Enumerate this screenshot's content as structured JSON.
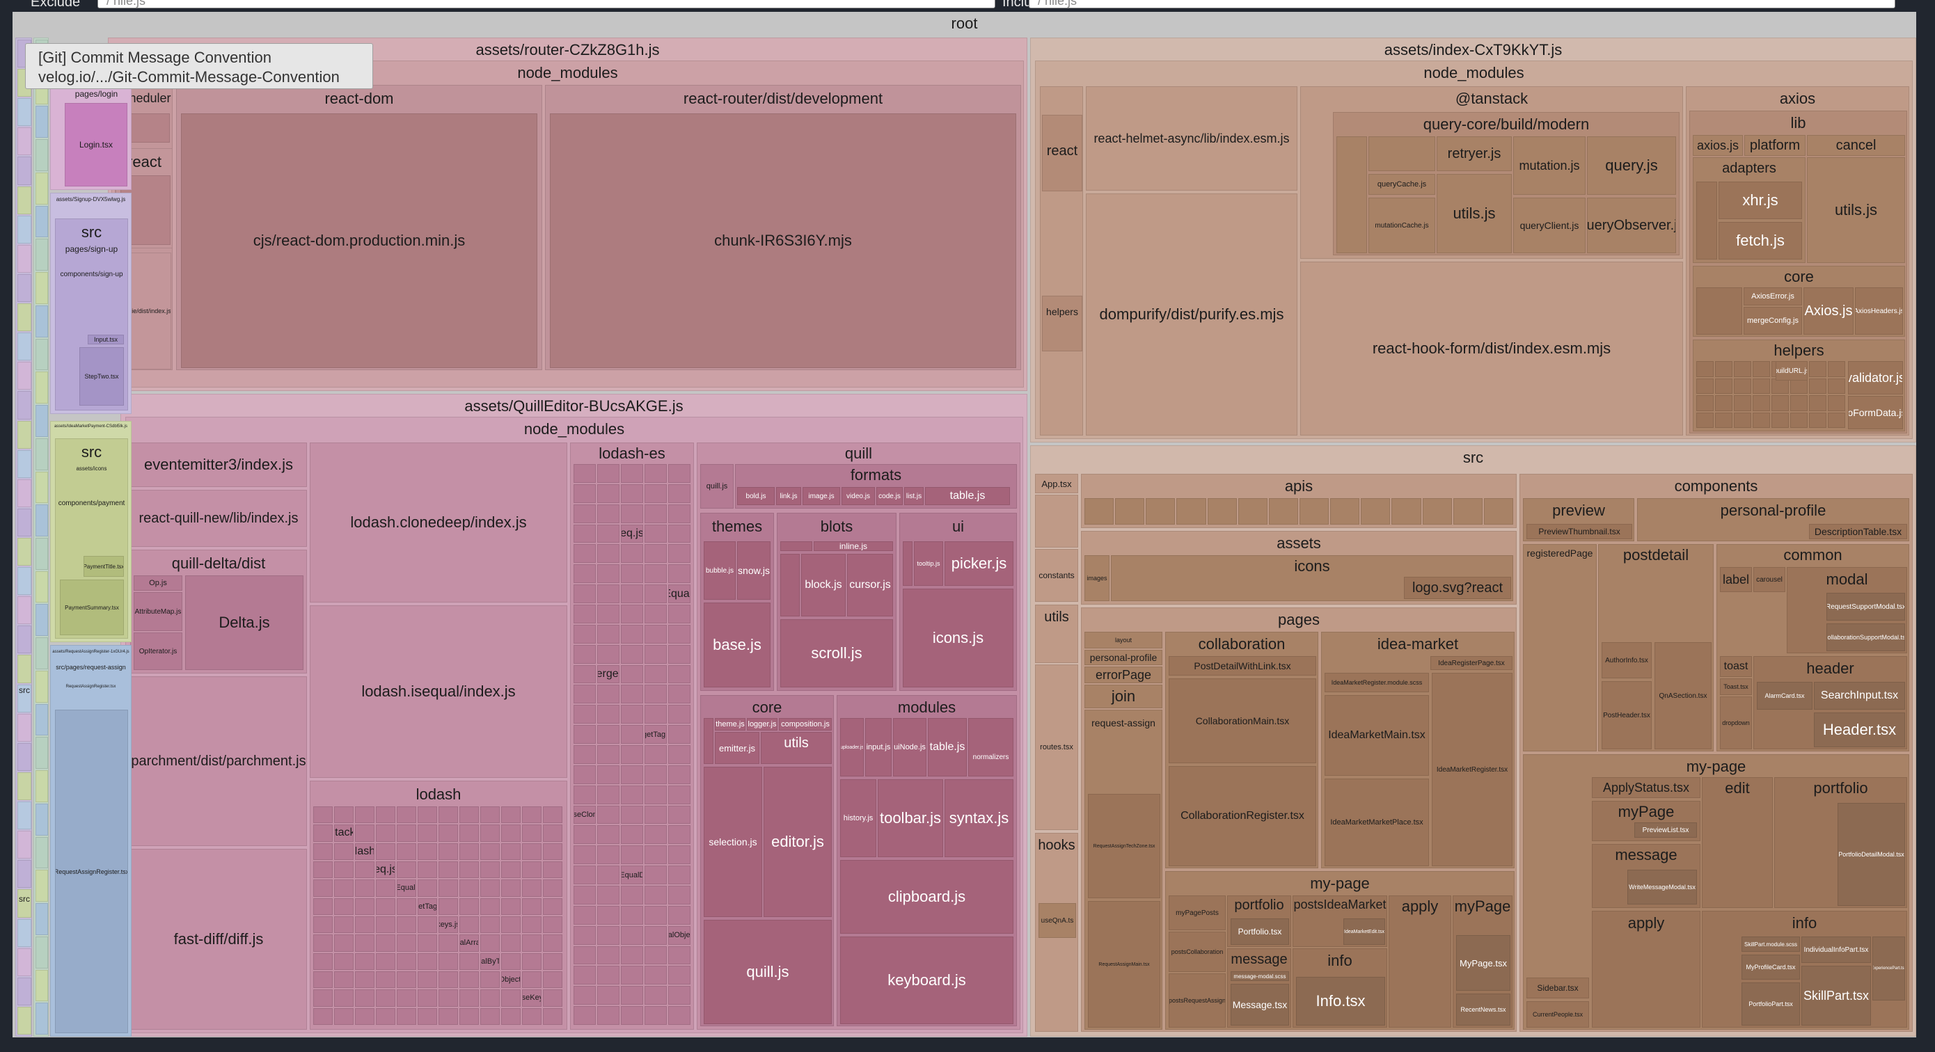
{
  "filters": {
    "exclude_label": "Exclude",
    "exclude_placeholder": "/ hile.js",
    "include_label": "Include",
    "include_placeholder": "/ hile.js"
  },
  "tooltip": {
    "line1": "[Git] Commit Message Convention",
    "line2": "velog.io/.../Git-Commit-Message-Convention"
  },
  "colors": {
    "router": "#d4adb4",
    "router_dark": "#ad7c7f",
    "quill": "#d6afc0",
    "quill_mid": "#c490a6",
    "quill_dark": "#a5637a",
    "index": "#d1b9ad",
    "index_dark": "#a88266",
    "src": "#d1b8ab",
    "green": "#c8d4a4",
    "blue": "#9fb4cf",
    "lavender": "#c5bad9",
    "pink": "#d49ccc"
  },
  "treemap": {
    "root": "root",
    "router": {
      "title": "assets/router-CZkZ8G1h.js",
      "node_modules": "node_modules",
      "scheduler": "scheduler",
      "react": "react",
      "cookie": "cookie/dist/index.js",
      "react_dom": "react-dom",
      "react_dom_min": "cjs/react-dom.production.min.js",
      "react_router": "react-router/dist/development",
      "chunk": "chunk-IR6S3I6Y.mjs"
    },
    "quill_editor": {
      "title": "assets/QuillEditor-BUcsAKGE.js",
      "node_modules": "node_modules",
      "eventemitter": "eventemitter3/index.js",
      "react_quill": "react-quill-new/lib/index.js",
      "quill_delta": "quill-delta/dist",
      "op": "Op.js",
      "attribute_map": "AttributeMap.js",
      "op_iterator": "OpIterator.js",
      "delta": "Delta.js",
      "parchment": "parchment/dist/parchment.js",
      "fast_diff": "fast-diff/diff.js",
      "clonedeep": "lodash.clonedeep/index.js",
      "isequal": "lodash.isequal/index.js",
      "lodash": "lodash",
      "lodash_files": [
        "_Stack.js",
        "_Hash.js",
        "eq.js",
        "isEqual.js",
        "_getTag.js",
        "keys.js",
        "_equalArrays.js",
        "_equalByTag.js",
        "isObject.js",
        "_baseKeys.js"
      ],
      "lodash_es": "lodash-es",
      "lodash_es_files": [
        "eq.js",
        "isEqual.js",
        "merge.js",
        "_getTag.js",
        "_baseClone.js",
        "_baseEqualDeep.js",
        "_equalObjects.js"
      ],
      "quill": "quill",
      "quill_js_small": "quill.js",
      "formats": "formats",
      "format_files": [
        "bold.js",
        "link.js",
        "image.js",
        "video.js",
        "code.js",
        "list.js",
        "table.js"
      ],
      "themes": "themes",
      "bubble": "bubble.js",
      "snow": "snow.js",
      "base": "base.js",
      "blots": "blots",
      "inline": "inline.js",
      "block": "block.js",
      "cursor": "cursor.js",
      "scroll": "scroll.js",
      "ui": "ui",
      "tooltip": "tooltip.js",
      "picker": "picker.js",
      "icons": "icons.js",
      "core": "core",
      "theme": "theme.js",
      "logger": "logger.js",
      "composition": "composition.js",
      "emitter": "emitter.js",
      "utils": "utils",
      "selection": "selection.js",
      "editor": "editor.js",
      "quill_js": "quill.js",
      "modules": "modules",
      "uploader": "uploader.js",
      "input": "input.js",
      "ui_node": "uiNode.js",
      "table_mod": "table.js",
      "normalizers": "normalizers",
      "history": "history.js",
      "toolbar": "toolbar.js",
      "syntax": "syntax.js",
      "clipboard": "clipboard.js",
      "keyboard": "keyboard.js"
    },
    "left_columns": {
      "pages_login": "pages/login",
      "login_tsx": "Login.tsx",
      "signup_asset": "assets/Signup-DVX5wlwg.js",
      "src": "src",
      "pages_signup": "pages/sign-up",
      "components_signup": "components/sign-up",
      "input_tsx": "Input.tsx",
      "steptwo": "StepTwo.tsx",
      "payment_asset": "assets/IdeaMarketPayment-CSdbl5Ik.js",
      "src2": "src",
      "assets_icons": "assets/icons",
      "components_payment": "components/payment",
      "payment_title": "PaymentTitle.tsx",
      "payment_summary": "PaymentSummary.tsx",
      "request_asset": "assets/RequestAssignRegister-1xGUr4.js",
      "src_pages_request": "src/pages/request-assign",
      "request_assign_register": "RequestAssignRegister.tsx",
      "request_register_tsx": "RequestAssignRegister.tsx",
      "src_narrow1": "src",
      "src_narrow2": "src"
    },
    "index_bundle": {
      "title": "assets/index-CxT9KkYT.js",
      "node_modules": "node_modules",
      "react": "react",
      "helpers": "helpers",
      "react_helmet": "react-helmet-async/lib/index.esm.js",
      "dompurify": "dompurify/dist/purify.es.mjs",
      "tanstack": "@tanstack",
      "query_core": "query-core/build/modern",
      "retryer": "retryer.js",
      "mutation": "mutation.js",
      "query": "query.js",
      "query_cache": "queryCache.js",
      "utils": "utils.js",
      "query_client": "queryClient.js",
      "query_observer": "queryObserver.js",
      "mutation_cache": "mutationCache.js",
      "react_hook_form": "react-hook-form/dist/index.esm.mjs",
      "axios": "axios",
      "lib": "lib",
      "axios_js": "axios.js",
      "platform": "platform",
      "cancel": "cancel",
      "adapters": "adapters",
      "xhr": "xhr.js",
      "fetch": "fetch.js",
      "utils_js": "utils.js",
      "core": "core",
      "axios_error": "AxiosError.js",
      "axios_core": "Axios.js",
      "axios_headers": "AxiosHeaders.js",
      "merge_config": "mergeConfig.js",
      "helpers2": "helpers",
      "build_url": "buildURL.js",
      "validator": "validator.js",
      "to_form_data": "toFormData.js"
    },
    "src_bundle": {
      "title": "src",
      "app": "App.tsx",
      "apis": "apis",
      "assets": "assets",
      "icons": "icons",
      "images": "images",
      "logo": "logo.svg?react",
      "constants": "constants",
      "utils": "utils",
      "routes": "routes.tsx",
      "hooks": "hooks",
      "use_qna": "useQnA.ts",
      "pages": "pages",
      "layout": "layout",
      "personal_profile": "personal-profile",
      "error_page": "errorPage",
      "join": "join",
      "request_assign": "request-assign",
      "collaboration": "collaboration",
      "post_detail_link": "PostDetailWithLink.tsx",
      "collab_main": "CollaborationMain.tsx",
      "collab_register": "CollaborationRegister.tsx",
      "idea_market": "idea-market",
      "idea_register_page": "IdeaRegisterPage.tsx",
      "idea_register_module": "IdeaMarketRegister.module.scss",
      "idea_market_main": "IdeaMarketMain.tsx",
      "idea_market_register": "IdeaMarketRegister.tsx",
      "idea_market_place": "IdeaMarketMarketPlace.tsx",
      "request_assign_tech": "RequestAssignTechZone.tsx",
      "request_assign_main": "RequestAssignMain.tsx",
      "my_page": "my-page",
      "my_page_posts": "myPagePosts",
      "post_collab": "postsCollaboration",
      "post_request": "postsRequestAssign",
      "portfolio": "portfolio",
      "portfolio_tsx": "Portfolio.tsx",
      "posts_idea": "postsIdeaMarket",
      "idea_edit": "IdeaMarketEdit.tsx",
      "apply": "apply",
      "mypage": "myPage",
      "mypage_tsx": "MyPage.tsx",
      "message": "message",
      "message_tsx": "Message.tsx",
      "message_modal": "message-modal.scss",
      "info": "info",
      "info_tsx": "Info.tsx",
      "recent_news": "RecentNews.tsx",
      "components": "components",
      "preview": "preview",
      "preview_thumbnail": "PreviewThumbnail.tsx",
      "personal_profile_c": "personal-profile",
      "description_table": "DescriptionTable.tsx",
      "registered_page": "registeredPage",
      "postdetail": "postdetail",
      "author_info": "AuthorInfo.tsx",
      "post_header": "PostHeader.tsx",
      "qna_section": "QnASection.tsx",
      "common": "common",
      "label": "label",
      "carousel": "carousel",
      "modal": "modal",
      "request_support_modal": "RequestSupportModal.tsx",
      "collab_support_modal": "CollaborationSupportModal.tsx",
      "toast": "toast",
      "toast_tsx": "Toast.tsx",
      "dropdown": "dropdown",
      "alarm_card": "AlarmCard.tsx",
      "header": "header",
      "search_input": "SearchInput.tsx",
      "header_tsx": "Header.tsx",
      "mypage_c": "my-page",
      "apply_status": "ApplyStatus.tsx",
      "edit": "edit",
      "portfolio_c": "portfolio",
      "portfolio_detail_modal": "PortfolioDetailModal.tsx",
      "mypage_c2": "myPage",
      "preview_list": "PreviewList.tsx",
      "message_c": "message",
      "write_message_modal": "WriteMessageModal.tsx",
      "apply_c": "apply",
      "sidebar": "Sidebar.tsx",
      "current_people": "CurrentPeople.tsx",
      "info_c": "info",
      "skill_part_module": "SkillPart.module.scss",
      "individual_info": "IndividualInfoPart.tsx",
      "my_profile_card": "MyProfileCard.tsx",
      "experience_part": "ExperiencePart.tsx",
      "portfolio_part": "PortfolioPart.tsx",
      "skill_part": "SkillPart.tsx"
    }
  }
}
